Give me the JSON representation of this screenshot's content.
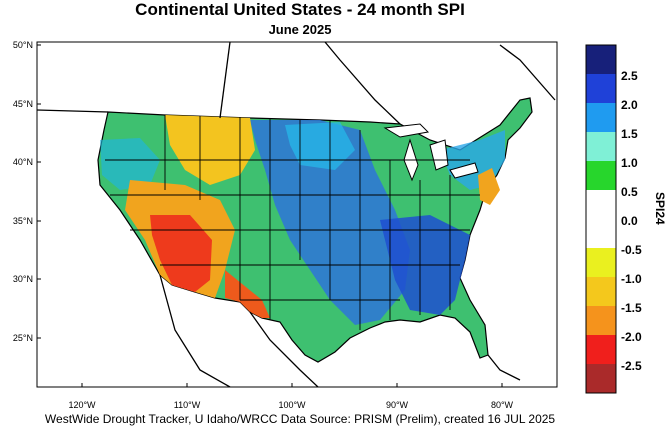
{
  "title": "Continental United States - 24 month SPI",
  "subtitle": "June 2025",
  "footer": "WestWide Drought Tracker, U Idaho/WRCC Data Source: PRISM (Prelim), created 16 JUL 2025",
  "map": {
    "lat_labels": [
      "50°N",
      "45°N",
      "40°N",
      "35°N",
      "30°N",
      "25°N"
    ],
    "lon_labels": [
      "120°W",
      "110°W",
      "100°W",
      "90°W",
      "80°W"
    ]
  },
  "colorbar": {
    "title": "SPI24",
    "labels": [
      "2.5",
      "2.0",
      "1.5",
      "1.0",
      "0.5",
      "0.0",
      "-0.5",
      "-1.0",
      "-1.5",
      "-2.0",
      "-2.5"
    ],
    "colors": [
      "#17207a",
      "#1f41d8",
      "#1f9bf0",
      "#7ff0d6",
      "#27d62c",
      "#ffffff",
      "#ffffff",
      "#eaf01f",
      "#f4c81c",
      "#f5931c",
      "#f01f1c",
      "#aa2a2a"
    ]
  }
}
